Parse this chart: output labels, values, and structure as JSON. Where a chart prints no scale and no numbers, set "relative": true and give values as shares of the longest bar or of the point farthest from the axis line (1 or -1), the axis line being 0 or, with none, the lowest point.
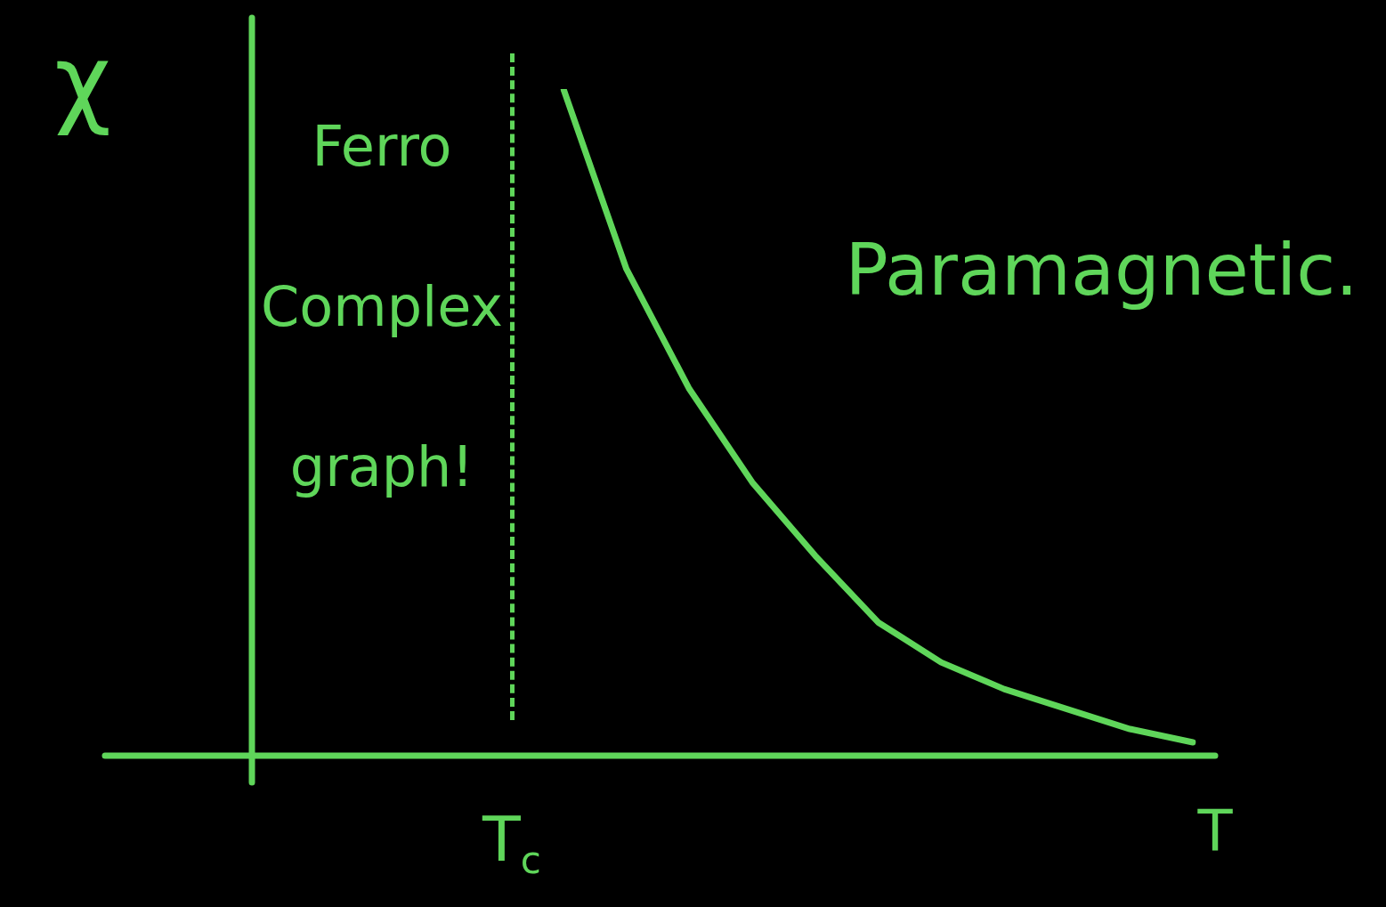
{
  "chart_data": {
    "type": "line",
    "relative": true,
    "xlabel": "T",
    "ylabel": "χ",
    "marker": "none",
    "categories": [
      null,
      null,
      null,
      null,
      null,
      null,
      null,
      null,
      null,
      null,
      null
    ],
    "series": [
      {
        "color": "#5fd65a",
        "values": [
          1,
          0.73,
          0.55,
          0.41,
          0.3,
          0.2,
          0.14,
          0.1,
          0.07,
          0.04,
          0.02
        ]
      }
    ],
    "annotations": [
      "Ferro Complex graph!",
      "Paramagnetic.",
      "T$_{c}$"
    ]
  }
}
